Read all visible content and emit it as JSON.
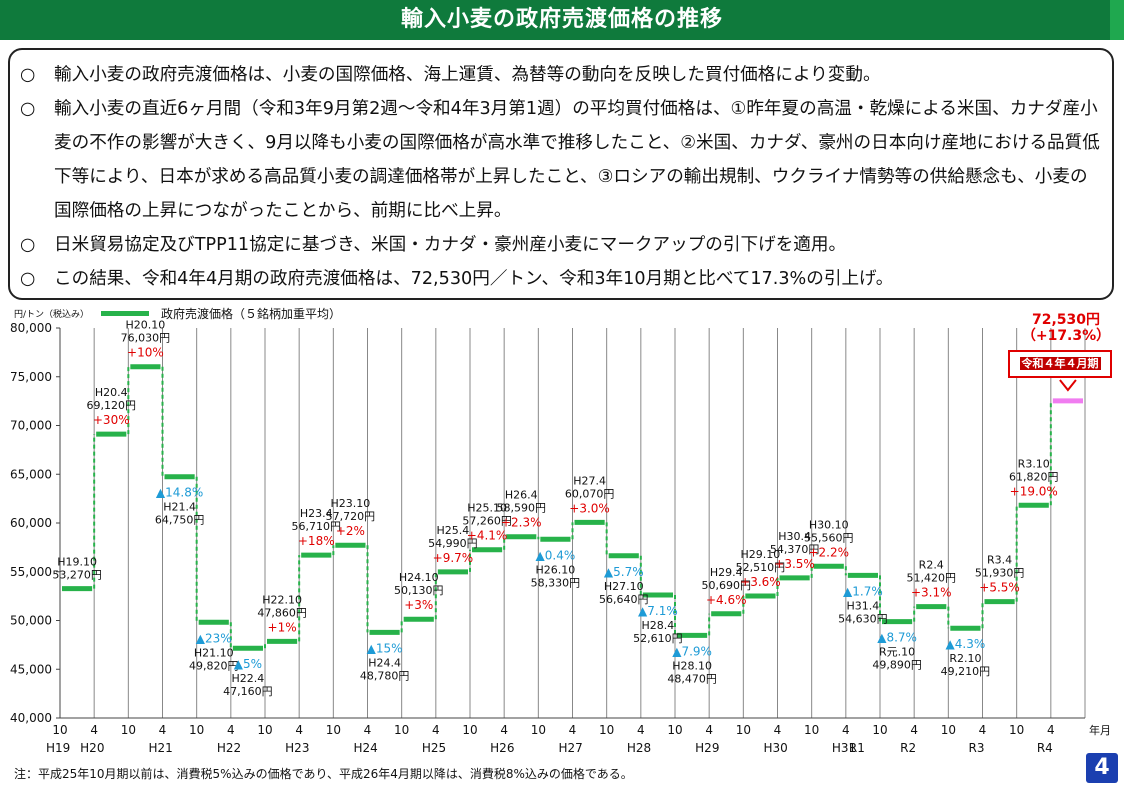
{
  "header": {
    "title": "輸入小麦の政府売渡価格の推移"
  },
  "summary": {
    "bullet_mark": "○",
    "items": [
      "輸入小麦の政府売渡価格は、小麦の国際価格、海上運賃、為替等の動向を反映した買付価格により変動。",
      "輸入小麦の直近6ヶ月間（令和3年9月第2週～令和4年3月第1週）の平均買付価格は、①昨年夏の高温・乾燥による米国、カナダ産小麦の不作の影響が大きく、9月以降も小麦の国際価格が高水準で推移したこと、②米国、カナダ、豪州の日本向け産地における品質低下等により、日本が求める高品質小麦の調達価格帯が上昇したこと、③ロシアの輸出規制、ウクライナ情勢等の供給懸念も、小麦の国際価格の上昇につながったことから、前期に比べ上昇。",
      "日米貿易協定及びTPP11協定に基づき、米国・カナダ・豪州産小麦にマークアップの引下げを適用。",
      "この結果、令和4年4月期の政府売渡価格は、72,530円／トン、令和3年10月期と比べて17.3%の引上げ。"
    ]
  },
  "legend": {
    "unit": "円/トン（税込み）",
    "label": "政府売渡価格（５銘柄加重平均）"
  },
  "callout": {
    "price": "72,530円",
    "change": "（+17.3%）",
    "period": "令和４年４月期"
  },
  "footnote": "注：平成25年10月期以前は、消費税5%込みの価格であり、平成26年4月期以降は、消費税8%込みの価格である。",
  "page_number": "4",
  "chart_data": {
    "type": "line",
    "step": true,
    "ylim": [
      40000,
      80000
    ],
    "yticks": [
      "40,000",
      "45,000",
      "50,000",
      "55,000",
      "60,000",
      "65,000",
      "70,000",
      "75,000",
      "80,000"
    ],
    "x_unit": "年月",
    "x_months": [
      "10",
      "4",
      "10",
      "4",
      "10",
      "4",
      "10",
      "4",
      "10",
      "4",
      "10",
      "4",
      "10",
      "4",
      "10",
      "4",
      "10",
      "4",
      "10",
      "4",
      "10",
      "4",
      "10",
      "4",
      "10",
      "4",
      "10",
      "4",
      "10",
      "4"
    ],
    "x_years": [
      {
        "label": "H19",
        "start": 0
      },
      {
        "label": "H20",
        "start": 1
      },
      {
        "label": "H21",
        "start": 3
      },
      {
        "label": "H22",
        "start": 5
      },
      {
        "label": "H23",
        "start": 7
      },
      {
        "label": "H24",
        "start": 9
      },
      {
        "label": "H25",
        "start": 11
      },
      {
        "label": "H26",
        "start": 13
      },
      {
        "label": "H27",
        "start": 15
      },
      {
        "label": "H28",
        "start": 17
      },
      {
        "label": "H29",
        "start": 19
      },
      {
        "label": "H30",
        "start": 21
      },
      {
        "label": "H31",
        "start": 23
      },
      {
        "label": "R1",
        "start": 23.5
      },
      {
        "label": "R2",
        "start": 25
      },
      {
        "label": "R3",
        "start": 27
      },
      {
        "label": "R4",
        "start": 29
      }
    ],
    "line_color": "#27b24a",
    "highlight_color": "#f07cf0",
    "periods": [
      {
        "label": "H19.10",
        "price_text": "53,270円",
        "value": 53270,
        "change": "",
        "dir": "none",
        "lpos": "above"
      },
      {
        "label": "H20.4",
        "price_text": "69,120円",
        "value": 69120,
        "change": "+30%",
        "dir": "up",
        "lpos": "above"
      },
      {
        "label": "H20.10",
        "price_text": "76,030円",
        "value": 76030,
        "change": "+10%",
        "dir": "up",
        "lpos": "above"
      },
      {
        "label": "H21.4",
        "price_text": "64,750円",
        "value": 64750,
        "change": "▲14.8%",
        "dir": "down",
        "lpos": "below"
      },
      {
        "label": "H21.10",
        "price_text": "49,820円",
        "value": 49820,
        "change": "▲23%",
        "dir": "down",
        "lpos": "below"
      },
      {
        "label": "H22.4",
        "price_text": "47,160円",
        "value": 47160,
        "change": "▲5%",
        "dir": "down",
        "lpos": "below"
      },
      {
        "label": "H22.10",
        "price_text": "47,860円",
        "value": 47860,
        "change": "+1%",
        "dir": "up",
        "lpos": "above"
      },
      {
        "label": "H23.4",
        "price_text": "56,710円",
        "value": 56710,
        "change": "+18%",
        "dir": "up",
        "lpos": "above"
      },
      {
        "label": "H23.10",
        "price_text": "57,720円",
        "value": 57720,
        "change": "+2%",
        "dir": "up",
        "lpos": "above"
      },
      {
        "label": "H24.4",
        "price_text": "48,780円",
        "value": 48780,
        "change": "▲15%",
        "dir": "down",
        "lpos": "below"
      },
      {
        "label": "H24.10",
        "price_text": "50,130円",
        "value": 50130,
        "change": "+3%",
        "dir": "up",
        "lpos": "above"
      },
      {
        "label": "H25.4",
        "price_text": "54,990円",
        "value": 54990,
        "change": "+9.7%",
        "dir": "up",
        "lpos": "above"
      },
      {
        "label": "H25.10",
        "price_text": "57,260円",
        "value": 57260,
        "change": "+4.1%",
        "dir": "up",
        "lpos": "above"
      },
      {
        "label": "H26.4",
        "price_text": "58,590円",
        "value": 58590,
        "change": "+2.3%",
        "dir": "up",
        "lpos": "above"
      },
      {
        "label": "H26.10",
        "price_text": "58,330円",
        "value": 58330,
        "change": "▲0.4%",
        "dir": "down",
        "lpos": "below"
      },
      {
        "label": "H27.4",
        "price_text": "60,070円",
        "value": 60070,
        "change": "+3.0%",
        "dir": "up",
        "lpos": "above"
      },
      {
        "label": "H27.10",
        "price_text": "56,640円",
        "value": 56640,
        "change": "▲5.7%",
        "dir": "down",
        "lpos": "below"
      },
      {
        "label": "H28.4",
        "price_text": "52,610円",
        "value": 52610,
        "change": "▲7.1%",
        "dir": "down",
        "lpos": "below"
      },
      {
        "label": "H28.10",
        "price_text": "48,470円",
        "value": 48470,
        "change": "▲7.9%",
        "dir": "down",
        "lpos": "below"
      },
      {
        "label": "H29.4",
        "price_text": "50,690円",
        "value": 50690,
        "change": "+4.6%",
        "dir": "up",
        "lpos": "above"
      },
      {
        "label": "H29.10",
        "price_text": "52,510円",
        "value": 52510,
        "change": "+3.6%",
        "dir": "up",
        "lpos": "above"
      },
      {
        "label": "H30.4",
        "price_text": "54,370円",
        "value": 54370,
        "change": "+3.5%",
        "dir": "up",
        "lpos": "above"
      },
      {
        "label": "H30.10",
        "price_text": "55,560円",
        "value": 55560,
        "change": "+2.2%",
        "dir": "up",
        "lpos": "above"
      },
      {
        "label": "H31.4",
        "price_text": "54,630円",
        "value": 54630,
        "change": "▲1.7%",
        "dir": "down",
        "lpos": "below"
      },
      {
        "label": "R元.10",
        "price_text": "49,890円",
        "value": 49890,
        "change": "▲8.7%",
        "dir": "down",
        "lpos": "below"
      },
      {
        "label": "R2.4",
        "price_text": "51,420円",
        "value": 51420,
        "change": "+3.1%",
        "dir": "up",
        "lpos": "above"
      },
      {
        "label": "R2.10",
        "price_text": "49,210円",
        "value": 49210,
        "change": "▲4.3%",
        "dir": "down",
        "lpos": "below"
      },
      {
        "label": "R3.4",
        "price_text": "51,930円",
        "value": 51930,
        "change": "+5.5%",
        "dir": "up",
        "lpos": "above"
      },
      {
        "label": "R3.10",
        "price_text": "61,820円",
        "value": 61820,
        "change": "+19.0%",
        "dir": "up",
        "lpos": "above"
      },
      {
        "label": "",
        "price_text": "",
        "value": 72530,
        "change": "",
        "dir": "none",
        "lpos": "none",
        "highlight": true
      }
    ]
  }
}
